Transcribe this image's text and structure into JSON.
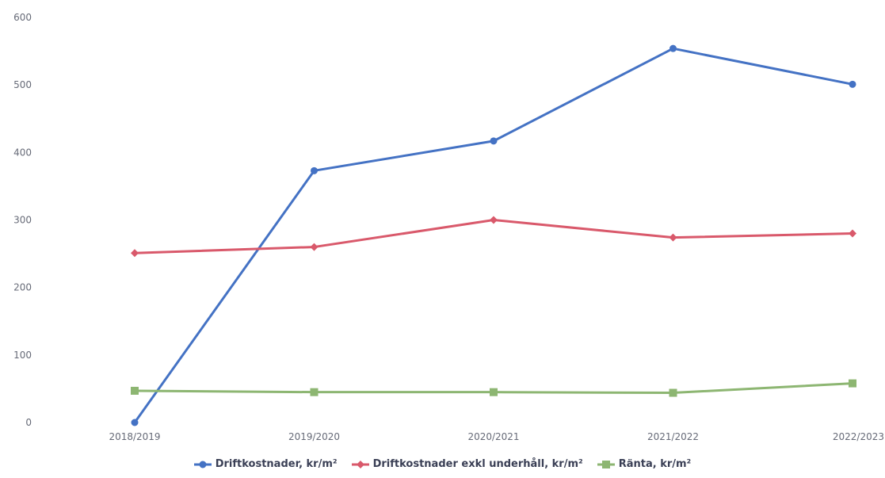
{
  "chart_data": {
    "type": "line",
    "categories": [
      "2018/2019",
      "2019/2020",
      "2020/2021",
      "2021/2022",
      "2022/2023"
    ],
    "series": [
      {
        "name": "Driftkostnader, kr/m²",
        "values": [
          0,
          373,
          417,
          554,
          501
        ],
        "color": "#4472c4",
        "marker": "circle"
      },
      {
        "name": "Driftkostnader exkl underhåll, kr/m²",
        "values": [
          251,
          260,
          300,
          274,
          280
        ],
        "color": "#d9596b",
        "marker": "diamond"
      },
      {
        "name": "Ränta, kr/m²",
        "values": [
          47,
          45,
          45,
          44,
          58
        ],
        "color": "#8db672",
        "marker": "square"
      }
    ],
    "yticks": [
      0,
      100,
      200,
      300,
      400,
      500,
      600
    ],
    "ylim": [
      0,
      600
    ],
    "grid": false,
    "legend": "bottom-center",
    "title": "",
    "xlabel": "",
    "ylabel": ""
  }
}
